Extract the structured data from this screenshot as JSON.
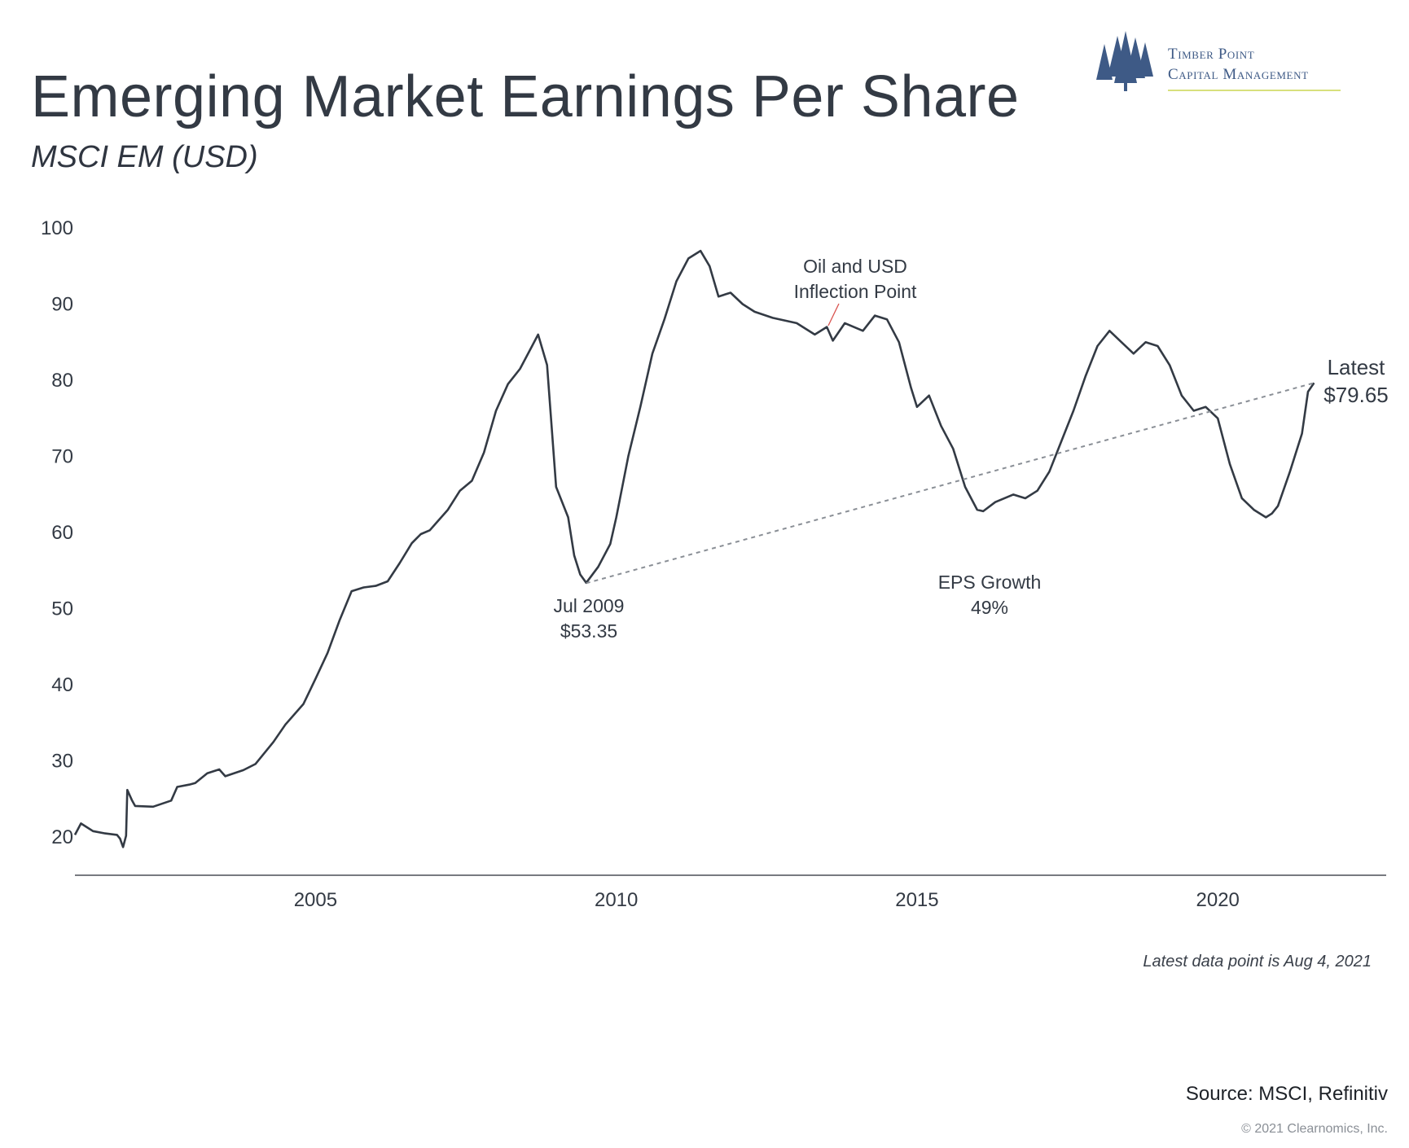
{
  "header": {
    "title": "Emerging Market Earnings Per Share",
    "subtitle": "MSCI EM (USD)"
  },
  "logo": {
    "line1": "Timber Point",
    "line2": "Capital Management",
    "icon": "pine-trees-icon",
    "color": "#3e5a86"
  },
  "footer": {
    "note": "Latest data point is Aug 4, 2021",
    "source": "Source: MSCI, Refinitiv",
    "copyright": "© 2021 Clearnomics, Inc."
  },
  "chart_data": {
    "type": "line",
    "ylim": [
      15,
      100
    ],
    "xlim": [
      2001.0,
      2022.8
    ],
    "yticks": [
      20,
      30,
      40,
      50,
      60,
      70,
      80,
      90,
      100
    ],
    "xticks": [
      2005,
      2010,
      2015,
      2020
    ],
    "grid": false,
    "line_color": "#333a44",
    "series": [
      {
        "x": [
          2001.0,
          2001.1,
          2001.3,
          2001.5,
          2001.7,
          2001.75,
          2001.8,
          2001.85,
          2001.87,
          2001.95,
          2002.0,
          2002.3,
          2002.6,
          2002.7,
          2002.9,
          2003.0,
          2003.2,
          2003.4,
          2003.5,
          2003.8,
          2004.0,
          2004.3,
          2004.5,
          2004.8,
          2005.0,
          2005.2,
          2005.4,
          2005.6,
          2005.8,
          2006.0,
          2006.2,
          2006.4,
          2006.6,
          2006.75,
          2006.9,
          2007.0,
          2007.2,
          2007.4,
          2007.6,
          2007.8,
          2008.0,
          2008.2,
          2008.4,
          2008.6,
          2008.7,
          2008.85,
          2009.0,
          2009.2,
          2009.3,
          2009.4,
          2009.5,
          2009.7,
          2009.9,
          2010.0,
          2010.2,
          2010.4,
          2010.6,
          2010.8,
          2011.0,
          2011.2,
          2011.4,
          2011.55,
          2011.7,
          2011.9,
          2012.1,
          2012.3,
          2012.6,
          2013.0,
          2013.3,
          2013.5,
          2013.6,
          2013.8,
          2014.1,
          2014.3,
          2014.5,
          2014.7,
          2014.9,
          2015.0,
          2015.2,
          2015.4,
          2015.6,
          2015.8,
          2016.0,
          2016.1,
          2016.3,
          2016.6,
          2016.8,
          2017.0,
          2017.2,
          2017.4,
          2017.6,
          2017.8,
          2018.0,
          2018.2,
          2018.4,
          2018.6,
          2018.8,
          2019.0,
          2019.2,
          2019.4,
          2019.6,
          2019.8,
          2020.0,
          2020.2,
          2020.4,
          2020.6,
          2020.8,
          2020.9,
          2021.0,
          2021.2,
          2021.4,
          2021.5,
          2021.6
        ],
        "values": [
          20.3,
          21.8,
          20.8,
          20.5,
          20.3,
          19.8,
          18.7,
          20.2,
          26.2,
          24.8,
          24.1,
          24.0,
          24.8,
          26.6,
          26.9,
          27.1,
          28.4,
          28.9,
          28.0,
          28.8,
          29.6,
          32.5,
          34.8,
          37.5,
          40.8,
          44.2,
          48.5,
          52.3,
          52.8,
          53.0,
          53.6,
          56.0,
          58.6,
          59.8,
          60.3,
          61.2,
          63.0,
          65.5,
          66.8,
          70.5,
          76.0,
          79.5,
          81.5,
          84.5,
          86.0,
          82.0,
          66.0,
          62.0,
          57.0,
          54.5,
          53.4,
          55.5,
          58.5,
          62.0,
          70.0,
          76.5,
          83.5,
          88.0,
          93.0,
          96.0,
          97.0,
          95.0,
          91.0,
          91.5,
          90.0,
          89.0,
          88.2,
          87.5,
          86.0,
          87.0,
          85.2,
          87.5,
          86.5,
          88.5,
          88.0,
          85.0,
          79.0,
          76.5,
          78.0,
          74.0,
          71.0,
          66.0,
          63.0,
          62.8,
          64.0,
          65.0,
          64.5,
          65.5,
          68.0,
          72.0,
          76.0,
          80.5,
          84.5,
          86.5,
          85.0,
          83.5,
          85.0,
          84.5,
          82.0,
          78.0,
          76.0,
          76.5,
          75.0,
          69.0,
          64.5,
          63.0,
          62.0,
          62.5,
          63.5,
          68.0,
          73.0,
          78.5,
          79.65
        ]
      },
      {
        "x": [
          2009.5,
          2021.6
        ],
        "values": [
          53.35,
          79.65
        ],
        "style": "dotted"
      }
    ],
    "annotations": [
      {
        "lines": [
          "Jul 2009",
          "$53.35"
        ]
      },
      {
        "lines": [
          "Oil and USD",
          "Inflection Point"
        ]
      },
      {
        "lines": [
          "EPS Growth",
          "49%"
        ]
      },
      {
        "lines": [
          "Latest",
          "$79.65"
        ]
      }
    ]
  }
}
